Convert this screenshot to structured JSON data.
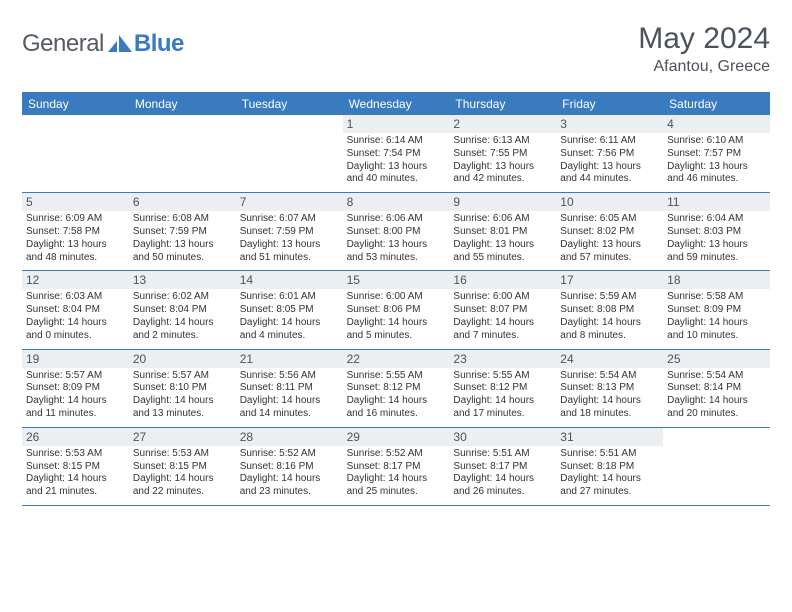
{
  "brand": {
    "word1": "General",
    "word2": "Blue",
    "color_word1": "#555b63",
    "color_word2": "#3a7bbf"
  },
  "title": "May 2024",
  "subtitle": "Afantou, Greece",
  "header_bg": "#3a7bbf",
  "daynum_bg": "#eceff1",
  "border_color": "#3a7bbf",
  "day_names": [
    "Sunday",
    "Monday",
    "Tuesday",
    "Wednesday",
    "Thursday",
    "Friday",
    "Saturday"
  ],
  "weeks": [
    [
      null,
      null,
      null,
      {
        "n": "1",
        "sr": "6:14 AM",
        "ss": "7:54 PM",
        "dl": "13 hours and 40 minutes."
      },
      {
        "n": "2",
        "sr": "6:13 AM",
        "ss": "7:55 PM",
        "dl": "13 hours and 42 minutes."
      },
      {
        "n": "3",
        "sr": "6:11 AM",
        "ss": "7:56 PM",
        "dl": "13 hours and 44 minutes."
      },
      {
        "n": "4",
        "sr": "6:10 AM",
        "ss": "7:57 PM",
        "dl": "13 hours and 46 minutes."
      }
    ],
    [
      {
        "n": "5",
        "sr": "6:09 AM",
        "ss": "7:58 PM",
        "dl": "13 hours and 48 minutes."
      },
      {
        "n": "6",
        "sr": "6:08 AM",
        "ss": "7:59 PM",
        "dl": "13 hours and 50 minutes."
      },
      {
        "n": "7",
        "sr": "6:07 AM",
        "ss": "7:59 PM",
        "dl": "13 hours and 51 minutes."
      },
      {
        "n": "8",
        "sr": "6:06 AM",
        "ss": "8:00 PM",
        "dl": "13 hours and 53 minutes."
      },
      {
        "n": "9",
        "sr": "6:06 AM",
        "ss": "8:01 PM",
        "dl": "13 hours and 55 minutes."
      },
      {
        "n": "10",
        "sr": "6:05 AM",
        "ss": "8:02 PM",
        "dl": "13 hours and 57 minutes."
      },
      {
        "n": "11",
        "sr": "6:04 AM",
        "ss": "8:03 PM",
        "dl": "13 hours and 59 minutes."
      }
    ],
    [
      {
        "n": "12",
        "sr": "6:03 AM",
        "ss": "8:04 PM",
        "dl": "14 hours and 0 minutes."
      },
      {
        "n": "13",
        "sr": "6:02 AM",
        "ss": "8:04 PM",
        "dl": "14 hours and 2 minutes."
      },
      {
        "n": "14",
        "sr": "6:01 AM",
        "ss": "8:05 PM",
        "dl": "14 hours and 4 minutes."
      },
      {
        "n": "15",
        "sr": "6:00 AM",
        "ss": "8:06 PM",
        "dl": "14 hours and 5 minutes."
      },
      {
        "n": "16",
        "sr": "6:00 AM",
        "ss": "8:07 PM",
        "dl": "14 hours and 7 minutes."
      },
      {
        "n": "17",
        "sr": "5:59 AM",
        "ss": "8:08 PM",
        "dl": "14 hours and 8 minutes."
      },
      {
        "n": "18",
        "sr": "5:58 AM",
        "ss": "8:09 PM",
        "dl": "14 hours and 10 minutes."
      }
    ],
    [
      {
        "n": "19",
        "sr": "5:57 AM",
        "ss": "8:09 PM",
        "dl": "14 hours and 11 minutes."
      },
      {
        "n": "20",
        "sr": "5:57 AM",
        "ss": "8:10 PM",
        "dl": "14 hours and 13 minutes."
      },
      {
        "n": "21",
        "sr": "5:56 AM",
        "ss": "8:11 PM",
        "dl": "14 hours and 14 minutes."
      },
      {
        "n": "22",
        "sr": "5:55 AM",
        "ss": "8:12 PM",
        "dl": "14 hours and 16 minutes."
      },
      {
        "n": "23",
        "sr": "5:55 AM",
        "ss": "8:12 PM",
        "dl": "14 hours and 17 minutes."
      },
      {
        "n": "24",
        "sr": "5:54 AM",
        "ss": "8:13 PM",
        "dl": "14 hours and 18 minutes."
      },
      {
        "n": "25",
        "sr": "5:54 AM",
        "ss": "8:14 PM",
        "dl": "14 hours and 20 minutes."
      }
    ],
    [
      {
        "n": "26",
        "sr": "5:53 AM",
        "ss": "8:15 PM",
        "dl": "14 hours and 21 minutes."
      },
      {
        "n": "27",
        "sr": "5:53 AM",
        "ss": "8:15 PM",
        "dl": "14 hours and 22 minutes."
      },
      {
        "n": "28",
        "sr": "5:52 AM",
        "ss": "8:16 PM",
        "dl": "14 hours and 23 minutes."
      },
      {
        "n": "29",
        "sr": "5:52 AM",
        "ss": "8:17 PM",
        "dl": "14 hours and 25 minutes."
      },
      {
        "n": "30",
        "sr": "5:51 AM",
        "ss": "8:17 PM",
        "dl": "14 hours and 26 minutes."
      },
      {
        "n": "31",
        "sr": "5:51 AM",
        "ss": "8:18 PM",
        "dl": "14 hours and 27 minutes."
      },
      null
    ]
  ],
  "labels": {
    "sunrise": "Sunrise:",
    "sunset": "Sunset:",
    "daylight": "Daylight:"
  }
}
